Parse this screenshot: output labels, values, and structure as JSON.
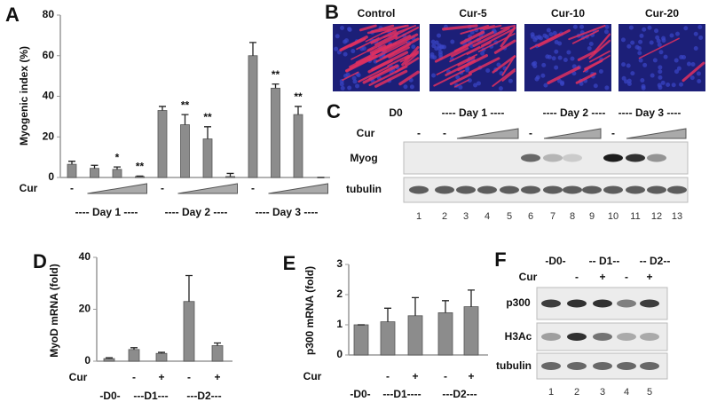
{
  "chart_data": [
    {
      "panel_label": "A",
      "type": "bar",
      "ylabel": "Myogenic index (%)",
      "categories": [
        "-",
        null,
        null,
        null,
        "-",
        null,
        null,
        null,
        "-",
        null,
        null,
        null
      ],
      "values": [
        6.5,
        4.5,
        4,
        0.5,
        33,
        26,
        19,
        0.5,
        60,
        44,
        31,
        0
      ],
      "errors": [
        1.5,
        1.5,
        1.2,
        0.2,
        2,
        5,
        6,
        1.5,
        6.5,
        2,
        4,
        0
      ],
      "annotations": [
        null,
        null,
        "*",
        "**",
        null,
        "**",
        "**",
        null,
        null,
        "**",
        "**",
        null
      ],
      "treatment_label": "Cur",
      "groups": [
        "---- Day 1 ----",
        "---- Day 2 ----",
        "---- Day 3 ----"
      ],
      "ylim": [
        0,
        80
      ],
      "yticks": [
        0,
        20,
        40,
        60,
        80
      ],
      "color": "#8c8c8c"
    },
    {
      "panel_label": "D",
      "type": "bar",
      "ylabel": "MyoD mRNA (fold)",
      "categories": [
        null,
        "-",
        "+",
        "-",
        "+"
      ],
      "values": [
        1,
        4.5,
        3,
        23,
        6
      ],
      "errors": [
        0.3,
        0.7,
        0.4,
        10,
        1
      ],
      "treatment_label": "Cur",
      "groups": [
        "-D0-",
        "---D1---",
        "---D2---"
      ],
      "ylim": [
        0,
        40
      ],
      "yticks": [
        0,
        20,
        40
      ],
      "color": "#8c8c8c"
    },
    {
      "panel_label": "E",
      "type": "bar",
      "ylabel": "p300 mRNA (fold)",
      "categories": [
        null,
        "-",
        "+",
        "-",
        "+"
      ],
      "values": [
        1,
        1.1,
        1.3,
        1.4,
        1.6
      ],
      "errors": [
        0,
        0.45,
        0.6,
        0.4,
        0.55
      ],
      "treatment_label": "Cur",
      "groups": [
        "-D0-",
        "---D1----",
        "---D2---"
      ],
      "ylim": [
        0,
        3
      ],
      "yticks": [
        0,
        1,
        2,
        3
      ],
      "color": "#8c8c8c"
    }
  ],
  "panel_b": {
    "panel_label": "B",
    "labels": [
      "Control",
      "Cur-5",
      "Cur-10",
      "Cur-20"
    ]
  },
  "panel_c": {
    "panel_label": "C",
    "header": [
      "D0",
      "---- Day 1 ----",
      "---- Day 2 ----",
      "---- Day 3 ----"
    ],
    "treatment_label": "Cur",
    "treatment": [
      "-",
      "-",
      "-",
      "-"
    ],
    "rows": [
      "Myog",
      "tubulin"
    ],
    "lanes": [
      1,
      2,
      3,
      4,
      5,
      6,
      7,
      8,
      9,
      10,
      11,
      12,
      13
    ]
  },
  "panel_f": {
    "panel_label": "F",
    "header": [
      "-D0-",
      "-- D1--",
      "-- D2--"
    ],
    "treatment_label": "Cur",
    "treatment": [
      "-",
      "+",
      "-",
      "+"
    ],
    "rows": [
      "p300",
      "H3Ac",
      "tubulin"
    ],
    "lanes": [
      1,
      2,
      3,
      4,
      5
    ]
  }
}
